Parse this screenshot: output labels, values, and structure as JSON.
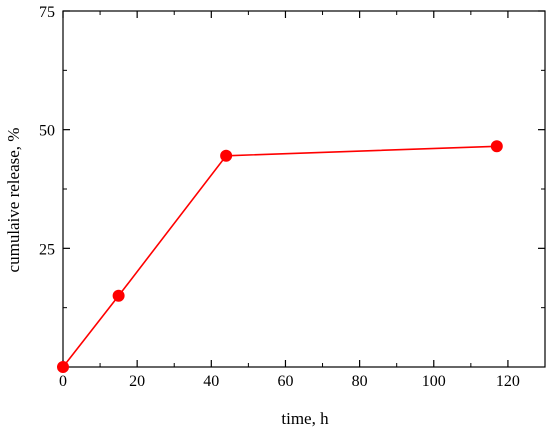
{
  "chart_data": {
    "type": "line",
    "title": "",
    "xlabel": "time, h",
    "ylabel": "cumulaive release, %",
    "xlim": [
      0,
      130
    ],
    "ylim": [
      0,
      75
    ],
    "x_ticks": [
      0,
      20,
      40,
      60,
      80,
      100,
      120
    ],
    "x_tick_labels": [
      "0",
      "20",
      "40",
      "60",
      "80",
      "100",
      "120"
    ],
    "y_ticks": [
      25,
      50,
      75
    ],
    "y_tick_labels": [
      "25",
      "50",
      "75"
    ],
    "grid": false,
    "legend": "none",
    "series": [
      {
        "x": [
          0,
          15,
          44,
          117
        ],
        "y": [
          0,
          15,
          44.5,
          46.5
        ],
        "color": "#ff0000",
        "marker": "circle"
      }
    ]
  }
}
